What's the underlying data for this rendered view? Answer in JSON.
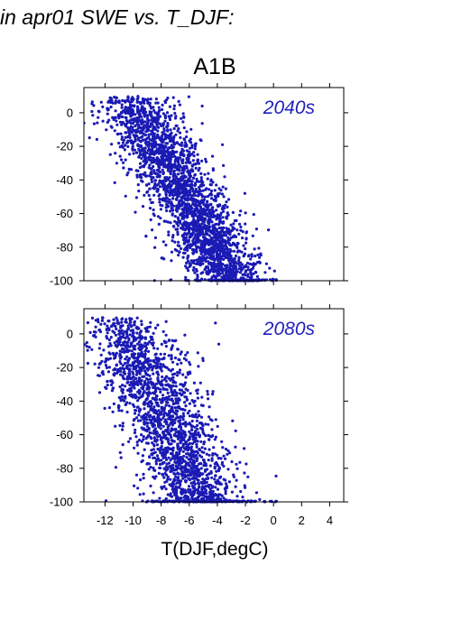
{
  "figure": {
    "title": "in apr01 SWE vs. T_DJF:"
  },
  "chart_data": {
    "type": "scatter",
    "title": "A1B",
    "xlabel": "T(DJF,degC)",
    "ylabel": "",
    "xlim": [
      -13.5,
      5
    ],
    "ylim": [
      -100,
      15
    ],
    "xticks": [
      -12,
      -10,
      -8,
      -6,
      -4,
      -2,
      0,
      2,
      4
    ],
    "yticks": [
      0,
      -20,
      -40,
      -60,
      -80,
      -100
    ],
    "grid": false,
    "marker_color": "#1a1ab4",
    "panels": [
      {
        "label": "2040s",
        "point_count": 2600,
        "seed": 2040,
        "x_center_at_y0": -9.5,
        "x_center_at_y100": -3.0,
        "x_spread": 1.4,
        "floor_value": -100,
        "floor_count": 130
      },
      {
        "label": "2080s",
        "point_count": 2200,
        "seed": 2080,
        "x_center_at_y0": -10.5,
        "x_center_at_y100": -5.0,
        "x_spread": 1.6,
        "floor_value": -100,
        "floor_count": 250
      }
    ]
  }
}
